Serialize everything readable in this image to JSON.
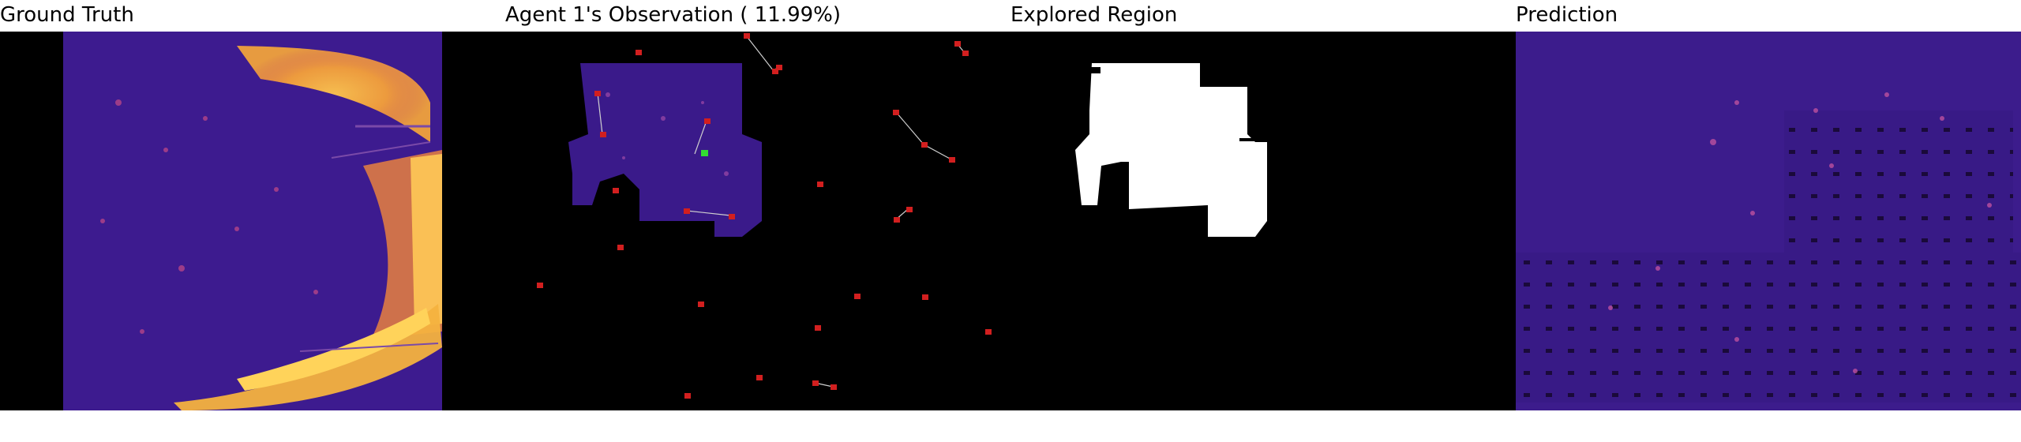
{
  "panels": {
    "ground_truth": {
      "title": "Ground Truth"
    },
    "observation": {
      "title": "Agent 1's Observation ( 11.99%)"
    },
    "explored": {
      "title": "Explored Region"
    },
    "prediction": {
      "title": "Prediction"
    }
  },
  "colors": {
    "background": "#000000",
    "map_base": "#3a1a8a",
    "map_hot": "#f5b642",
    "map_warm": "#d7456e",
    "agent": "#d21f1f",
    "active_agent": "#33dd33",
    "explored": "#ffffff",
    "trail": "#cfcfcf"
  },
  "observation_coverage_percent": 11.99
}
